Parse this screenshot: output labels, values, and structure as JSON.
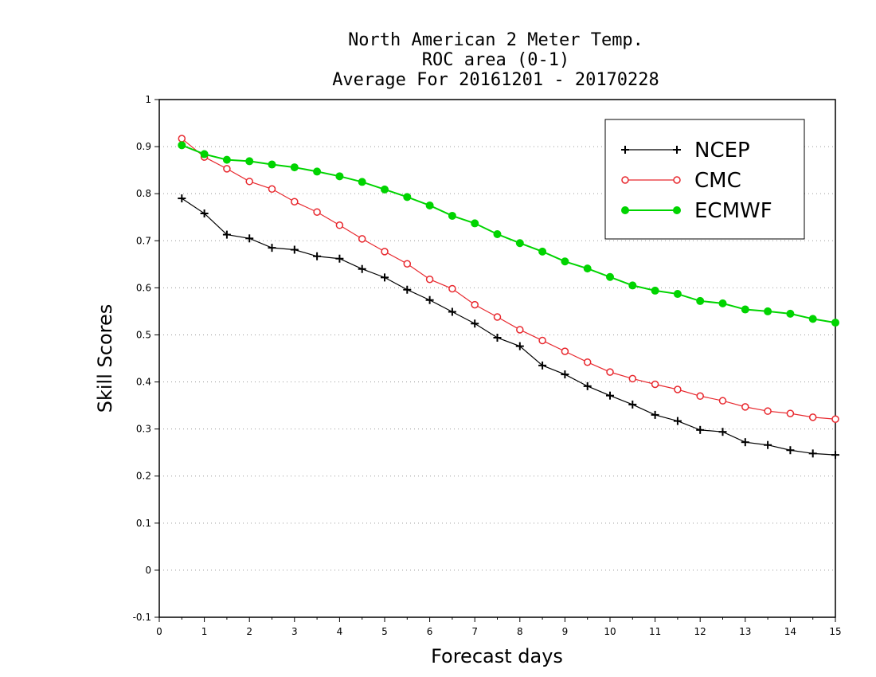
{
  "chart_data": {
    "type": "line",
    "title_lines": [
      "North American 2 Meter Temp.",
      "ROC area (0-1)",
      "Average For 20161201 - 20170228"
    ],
    "xlabel": "Forecast days",
    "ylabel": "Skill Scores",
    "xlim": [
      0,
      15
    ],
    "ylim": [
      -0.1,
      1
    ],
    "xticks": [
      "0",
      "1",
      "2",
      "3",
      "4",
      "5",
      "6",
      "7",
      "8",
      "9",
      "10",
      "11",
      "12",
      "13",
      "14",
      "15"
    ],
    "yticks": [
      "-0.1",
      "0",
      "0.1",
      "0.2",
      "0.3",
      "0.4",
      "0.5",
      "0.6",
      "0.7",
      "0.8",
      "0.9",
      "1"
    ],
    "grid": "horizontal dotted",
    "legend_position": "top-right",
    "x": [
      0.5,
      1,
      1.5,
      2,
      2.5,
      3,
      3.5,
      4,
      4.5,
      5,
      5.5,
      6,
      6.5,
      7,
      7.5,
      8,
      8.5,
      9,
      9.5,
      10,
      10.5,
      11,
      11.5,
      12,
      12.5,
      13,
      13.5,
      14,
      14.5,
      15
    ],
    "series": [
      {
        "name": "NCEP",
        "color": "#000000",
        "marker": "plus",
        "values": [
          0.79,
          0.758,
          0.713,
          0.705,
          0.685,
          0.681,
          0.667,
          0.662,
          0.64,
          0.622,
          0.596,
          0.574,
          0.549,
          0.524,
          0.494,
          0.476,
          0.435,
          0.416,
          0.391,
          0.371,
          0.352,
          0.33,
          0.317,
          0.298,
          0.294,
          0.272,
          0.266,
          0.255,
          0.248,
          0.245
        ]
      },
      {
        "name": "CMC",
        "color": "#e8282e",
        "marker": "open-circle",
        "values": [
          0.917,
          0.878,
          0.853,
          0.826,
          0.81,
          0.783,
          0.761,
          0.733,
          0.704,
          0.677,
          0.651,
          0.618,
          0.598,
          0.564,
          0.538,
          0.511,
          0.488,
          0.465,
          0.442,
          0.421,
          0.407,
          0.395,
          0.384,
          0.37,
          0.36,
          0.347,
          0.338,
          0.333,
          0.325,
          0.321
        ]
      },
      {
        "name": "ECMWF",
        "color": "#00d400",
        "marker": "filled-circle",
        "values": [
          0.903,
          0.884,
          0.872,
          0.869,
          0.862,
          0.856,
          0.847,
          0.837,
          0.825,
          0.809,
          0.793,
          0.775,
          0.753,
          0.737,
          0.714,
          0.695,
          0.677,
          0.656,
          0.641,
          0.623,
          0.605,
          0.594,
          0.587,
          0.572,
          0.567,
          0.554,
          0.55,
          0.545,
          0.534,
          0.526
        ]
      }
    ]
  }
}
